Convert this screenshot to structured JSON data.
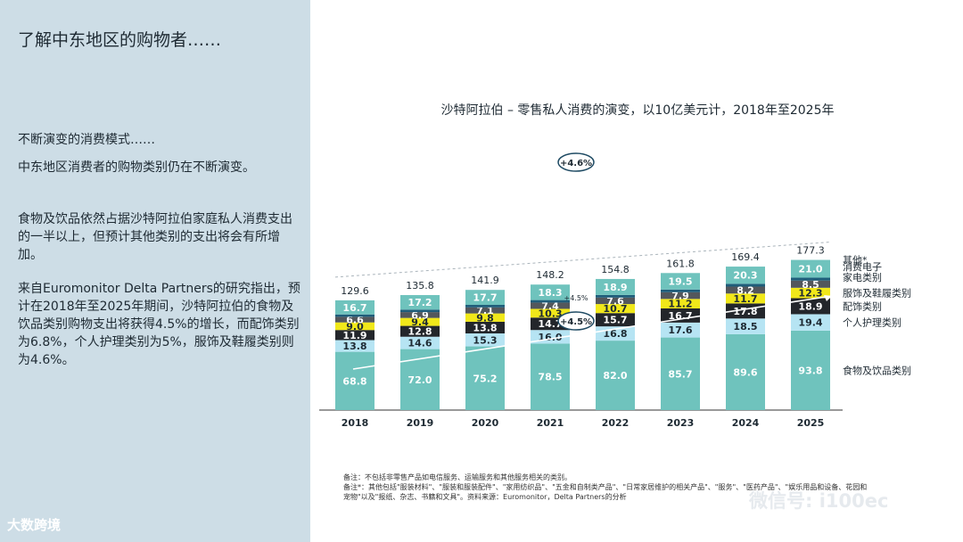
{
  "page": {
    "title": "了解中东地区的购物者……",
    "subhead": "不断演变的消费模式……",
    "paragraphs": [
      "中东地区消费者的购物类别仍在不断演变。",
      "食物及饮品依然占据沙特阿拉伯家庭私人消费支出的一半以上，但预计其他类别的支出将会有所增加。",
      "来自Euromonitor Delta Partners的研究指出，预计在2018年至2025年期间，沙特阿拉伯的食物及饮品类别购物支出将获得4.5%的增长，而配饰类别为6.8%，个人护理类别为5%，服饰及鞋履类别则为4.6%。"
    ],
    "logo_text": "大数跨境",
    "watermark": "微信号: i100ec",
    "footnotes": [
      "备注：不包括非零售产品如电信服务、运输服务和其他服务相关的类别。",
      "备注*：其他包括\"服装材料\"、\"服装和服装配件\"、\"家用纺织品\"、\"五金和自制类产品\"、\"日常家居维护的相关产品\"、\"服务\"、\"医药产品\"、\"娱乐用品和设备、花园和",
      "宠物\"以及\"报纸、杂志、书籍和文具\"。资料来源：Euromonitor，Delta Partners的分析"
    ]
  },
  "chart_data": {
    "type": "bar",
    "stacked": true,
    "title": "沙特阿拉伯 – 零售私人消费的演变，以10亿美元计，2018年至2025年",
    "categories": [
      "2018",
      "2019",
      "2020",
      "2021",
      "2022",
      "2023",
      "2024",
      "2025"
    ],
    "totals": [
      "129.6",
      "135.8",
      "141.9",
      "148.2",
      "154.8",
      "161.8",
      "169.4",
      "177.3"
    ],
    "series": [
      {
        "name": "食物及饮品类别",
        "color": "#6fc3bd",
        "text_color": "#ffffff",
        "values": [
          68.8,
          72.0,
          75.2,
          78.5,
          82.0,
          85.7,
          89.6,
          93.8
        ]
      },
      {
        "name": "个人护理类别",
        "color": "#b6e4f3",
        "text_color": "#1e2a33",
        "values": [
          13.8,
          14.6,
          15.3,
          16.0,
          16.8,
          17.6,
          18.5,
          19.4
        ]
      },
      {
        "name": "配饰类别",
        "color": "#23262b",
        "text_color": "#ffffff",
        "values": [
          11.9,
          12.8,
          13.8,
          14.7,
          15.7,
          16.7,
          17.8,
          18.9
        ]
      },
      {
        "name": "服饰及鞋履类别",
        "color": "#f1e81a",
        "text_color": "#1e2a33",
        "values": [
          9.0,
          9.4,
          9.8,
          10.3,
          10.7,
          11.2,
          11.7,
          12.3
        ]
      },
      {
        "name": "家电类别",
        "color": "#53575c",
        "text_color": "#ffffff",
        "values": [
          6.6,
          6.9,
          7.1,
          7.4,
          7.6,
          7.9,
          8.2,
          8.5
        ]
      },
      {
        "name": "消费电子",
        "color": "#1f5d7a",
        "text_color": "#ffffff",
        "values": [
          2.8,
          2.9,
          3.0,
          3.0,
          3.1,
          3.2,
          3.3,
          3.4
        ]
      },
      {
        "name": "其他*",
        "color": "#6fc3bd",
        "text_color": "#ffffff",
        "values": [
          16.7,
          17.2,
          17.7,
          18.3,
          18.9,
          19.5,
          20.3,
          21.0
        ]
      }
    ],
    "value_labels": [
      [
        "68.8",
        "72.0",
        "75.2",
        "78.5",
        "82.0",
        "85.7",
        "89.6",
        "93.8"
      ],
      [
        "13.8",
        "14.6",
        "15.3",
        "16.0",
        "16.8",
        "17.6",
        "18.5",
        "19.4"
      ],
      [
        "11.9",
        "12.8",
        "13.8",
        "14.7",
        "15.7",
        "16.7",
        "17.8",
        "18.9"
      ],
      [
        "9.0",
        "9.4",
        "9.8",
        "10.3",
        "10.7",
        "11.2",
        "11.7",
        "12.3"
      ],
      [
        "6.6",
        "6.9",
        "7.1",
        "7.4",
        "7.6",
        "7.9",
        "8.2",
        "8.5"
      ],
      [
        "",
        "",
        "",
        "",
        "",
        "",
        "",
        ""
      ],
      [
        "16.7",
        "17.2",
        "17.7",
        "18.3",
        "18.9",
        "19.5",
        "20.3",
        "21.0"
      ]
    ],
    "annotations": [
      {
        "text": "+4.6%",
        "target": "top"
      },
      {
        "text": "+4.5%",
        "target": "food"
      },
      {
        "text": "+4.5%",
        "target": "food-small"
      }
    ],
    "legend_position": "right",
    "grid": false,
    "ylim": [
      0,
      180
    ]
  }
}
